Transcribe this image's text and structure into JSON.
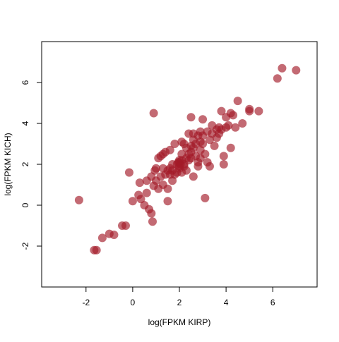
{
  "chart_data": {
    "type": "scatter",
    "x_label": "log(FPKM KIRP)",
    "y_label": "log(FPKM KICH)",
    "color": "#a31a28",
    "xlim": [
      -3.9,
      7.9
    ],
    "ylim": [
      -4,
      8
    ],
    "xticks": [
      -2,
      0,
      2,
      4,
      6
    ],
    "yticks": [
      -2,
      0,
      2,
      4,
      6
    ],
    "x": [
      -2.3,
      -1.65,
      -1.55,
      -1.3,
      -1.0,
      -0.8,
      -0.45,
      -0.3,
      -0.15,
      0.0,
      0.25,
      0.3,
      0.35,
      0.5,
      0.6,
      0.7,
      0.8,
      0.85,
      0.9,
      0.9,
      0.95,
      1.0,
      0.8,
      0.6,
      1.1,
      1.2,
      1.1,
      1.3,
      1.4,
      1.5,
      1.4,
      1.5,
      1.6,
      1.7,
      1.6,
      1.5,
      1.8,
      1.8,
      1.9,
      1.9,
      2.0,
      2.0,
      2.1,
      2.1,
      2.2,
      2.2,
      2.3,
      2.3,
      2.4,
      2.4,
      2.5,
      2.5,
      2.6,
      2.6,
      2.7,
      2.7,
      2.8,
      2.8,
      2.9,
      3.0,
      3.0,
      3.1,
      3.1,
      3.2,
      3.2,
      3.3,
      3.3,
      3.4,
      3.5,
      3.6,
      3.7,
      3.8,
      3.8,
      3.9,
      3.9,
      4.0,
      4.0,
      4.1,
      4.2,
      4.2,
      4.3,
      4.4,
      4.5,
      4.7,
      5.0,
      5.0,
      5.4,
      6.2,
      6.4,
      7.0,
      1.2,
      1.3,
      1.6,
      1.7,
      1.7,
      2.0,
      2.0,
      2.05,
      1.95,
      2.1,
      2.2,
      2.3,
      2.4,
      2.5,
      2.5,
      2.6,
      2.9,
      3.0,
      3.4,
      3.6,
      2.9,
      2.6,
      2.1,
      1.3,
      1.0,
      2.9,
      2.8,
      3.7
    ],
    "y": [
      0.25,
      -2.2,
      -2.2,
      -1.6,
      -1.4,
      -1.45,
      -1.0,
      -1.0,
      1.6,
      0.2,
      0.5,
      1.1,
      0.3,
      0.0,
      0.6,
      -0.2,
      -0.4,
      -0.8,
      0.95,
      4.5,
      1.7,
      1.2,
      1.4,
      1.2,
      2.3,
      2.4,
      0.8,
      1.0,
      1.5,
      1.7,
      2.6,
      0.8,
      1.8,
      1.2,
      2.7,
      0.2,
      1.5,
      3.0,
      2.0,
      1.6,
      2.2,
      1.8,
      2.5,
      1.6,
      3.0,
      2.0,
      2.8,
      1.7,
      3.5,
      2.2,
      2.6,
      4.3,
      1.4,
      3.2,
      2.4,
      3.0,
      2.1,
      3.4,
      2.7,
      3.0,
      4.2,
      0.35,
      2.5,
      2.1,
      3.6,
      1.9,
      3.2,
      3.9,
      2.9,
      3.3,
      3.5,
      3.7,
      4.6,
      2.4,
      2.0,
      3.8,
      4.3,
      3.9,
      2.8,
      4.5,
      4.4,
      3.8,
      5.1,
      4.0,
      4.6,
      4.7,
      4.6,
      6.2,
      6.7,
      6.6,
      1.4,
      1.8,
      1.5,
      2.0,
      1.7,
      1.9,
      2.1,
      2.0,
      2.1,
      2.2,
      1.9,
      2.3,
      2.5,
      2.3,
      2.9,
      2.8,
      3.1,
      3.4,
      3.5,
      3.7,
      3.6,
      3.5,
      3.1,
      2.5,
      1.8,
      2.3,
      1.9,
      3.8
    ]
  }
}
